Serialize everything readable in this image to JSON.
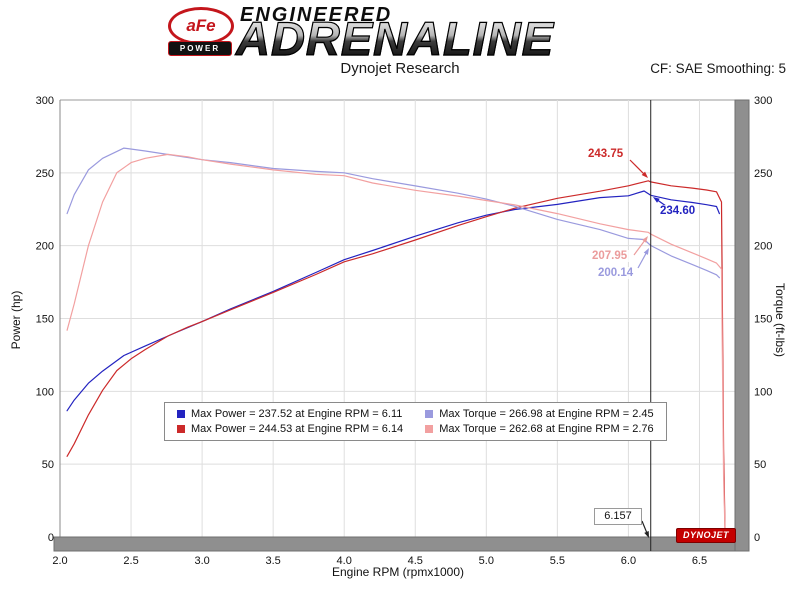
{
  "header": {
    "badge_line1": "aFe",
    "badge_line2": "POWER",
    "logo_top": "ENGINEERED",
    "logo_main": "ADRENALINE",
    "subtitle": "Dynojet Research",
    "cf_label": "CF: SAE Smoothing: 5"
  },
  "chart_data": {
    "type": "line",
    "xlabel": "Engine RPM (rpmx1000)",
    "ylabel_left": "Power (hp)",
    "ylabel_right": "Torque (ft-lbs)",
    "xlim": [
      2.0,
      6.75
    ],
    "ylim_left": [
      0,
      300
    ],
    "ylim_right": [
      0,
      300
    ],
    "grid": true,
    "x_ticks": [
      "2.0",
      "2.5",
      "3.0",
      "3.5",
      "4.0",
      "4.5",
      "5.0",
      "5.5",
      "6.0",
      "6.5"
    ],
    "y_ticks": [
      "0",
      "50",
      "100",
      "150",
      "200",
      "250",
      "300"
    ],
    "cursor": {
      "rpm": 6.157,
      "label": "6.157"
    },
    "series": [
      {
        "name": "power-baseline",
        "color": "#2323c0",
        "axis": "left",
        "x": [
          2.05,
          2.1,
          2.2,
          2.3,
          2.45,
          2.6,
          2.8,
          3.0,
          3.2,
          3.5,
          3.8,
          4.0,
          4.2,
          4.5,
          4.8,
          5.0,
          5.2,
          5.5,
          5.8,
          6.0,
          6.11,
          6.157,
          6.3,
          6.45,
          6.55,
          6.62,
          6.64
        ],
        "values": [
          86.7,
          94.0,
          105.6,
          113.9,
          124.6,
          131.2,
          139.7,
          147.9,
          156.6,
          168.6,
          181.6,
          190.4,
          196.7,
          206.5,
          215.7,
          220.9,
          224.8,
          228.3,
          233.0,
          234.2,
          237.52,
          234.6,
          231.5,
          229.6,
          228.1,
          226.9,
          222.0
        ]
      },
      {
        "name": "power-afe",
        "color": "#cc2a2a",
        "axis": "left",
        "x": [
          2.05,
          2.1,
          2.2,
          2.3,
          2.4,
          2.5,
          2.6,
          2.76,
          2.9,
          3.0,
          3.2,
          3.5,
          3.8,
          4.0,
          4.2,
          4.5,
          4.8,
          5.0,
          5.2,
          5.5,
          5.8,
          6.0,
          6.14,
          6.157,
          6.3,
          6.45,
          6.55,
          6.62,
          6.655,
          6.67,
          6.68
        ],
        "values": [
          55.4,
          64.0,
          83.8,
          100.7,
          114.2,
          122.3,
          128.7,
          138.0,
          144.1,
          147.9,
          156.0,
          167.9,
          180.2,
          188.9,
          194.4,
          203.9,
          213.8,
          219.9,
          225.7,
          232.5,
          237.4,
          241.1,
          244.53,
          243.75,
          241.1,
          239.5,
          238.2,
          237.0,
          230.0,
          60.0,
          2.0
        ]
      },
      {
        "name": "torque-baseline",
        "color": "#9a9ade",
        "axis": "right",
        "x": [
          2.05,
          2.1,
          2.2,
          2.3,
          2.45,
          2.6,
          2.8,
          3.0,
          3.2,
          3.5,
          3.8,
          4.0,
          4.2,
          4.5,
          4.8,
          5.0,
          5.2,
          5.5,
          5.8,
          6.0,
          6.11,
          6.157,
          6.3,
          6.45,
          6.55,
          6.62,
          6.64
        ],
        "values": [
          222,
          235,
          252,
          260,
          266.98,
          265,
          262,
          259,
          257,
          253,
          251,
          250,
          246,
          241,
          236,
          232,
          227,
          218,
          211,
          205,
          204.2,
          200.14,
          193,
          187,
          183,
          180,
          178
        ]
      },
      {
        "name": "torque-afe",
        "color": "#f2a0a0",
        "axis": "right",
        "x": [
          2.05,
          2.1,
          2.2,
          2.3,
          2.4,
          2.5,
          2.6,
          2.76,
          2.9,
          3.0,
          3.2,
          3.5,
          3.8,
          4.0,
          4.2,
          4.5,
          4.8,
          5.0,
          5.2,
          5.5,
          5.8,
          6.0,
          6.14,
          6.157,
          6.3,
          6.45,
          6.55,
          6.62,
          6.655,
          6.67,
          6.68
        ],
        "values": [
          142,
          160,
          200,
          230,
          250,
          257,
          260,
          262.68,
          261,
          259,
          256,
          252,
          249,
          248,
          243,
          238,
          234,
          231,
          228,
          222,
          215,
          211,
          209.2,
          207.95,
          201,
          195,
          191,
          188,
          184,
          40,
          2
        ]
      }
    ],
    "annotations": [
      {
        "text": "243.75",
        "color": "#cc2a2a"
      },
      {
        "text": "234.60",
        "color": "#2323c0"
      },
      {
        "text": "207.95",
        "color": "#eb9c9c"
      },
      {
        "text": "200.14",
        "color": "#9a9ade"
      }
    ],
    "legend": [
      {
        "color": "#2323c0",
        "label": "Max Power = 237.52 at Engine RPM = 6.11"
      },
      {
        "color": "#9a9ade",
        "label": "Max Torque = 266.98 at Engine RPM = 2.45"
      },
      {
        "color": "#cc2a2a",
        "label": "Max Power = 244.53 at Engine RPM = 6.14"
      },
      {
        "color": "#f2a0a0",
        "label": "Max Torque = 262.68 at Engine RPM = 2.76"
      }
    ],
    "watermark": "DYNOJET"
  }
}
